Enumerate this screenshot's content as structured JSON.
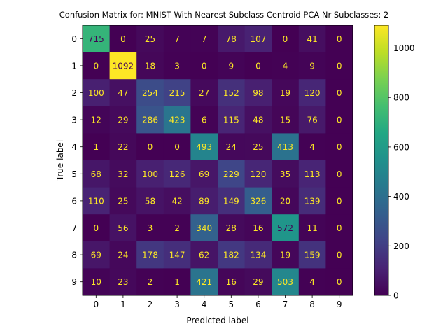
{
  "chart_data": {
    "type": "heatmap",
    "title": "Confusion Matrix for: MNIST With Nearest Subclass Centroid PCA Nr Subclasses: 2",
    "xlabel": "Predicted label",
    "ylabel": "True label",
    "x_categories": [
      "0",
      "1",
      "2",
      "3",
      "4",
      "5",
      "6",
      "7",
      "8",
      "9"
    ],
    "y_categories": [
      "0",
      "1",
      "2",
      "3",
      "4",
      "5",
      "6",
      "7",
      "8",
      "9"
    ],
    "values": [
      [
        715,
        0,
        25,
        7,
        7,
        78,
        107,
        0,
        41,
        0
      ],
      [
        0,
        1092,
        18,
        3,
        0,
        9,
        0,
        4,
        9,
        0
      ],
      [
        100,
        47,
        254,
        215,
        27,
        152,
        98,
        19,
        120,
        0
      ],
      [
        12,
        29,
        286,
        423,
        6,
        115,
        48,
        15,
        76,
        0
      ],
      [
        1,
        22,
        0,
        0,
        493,
        24,
        25,
        413,
        4,
        0
      ],
      [
        68,
        32,
        100,
        126,
        69,
        229,
        120,
        35,
        113,
        0
      ],
      [
        110,
        25,
        58,
        42,
        89,
        149,
        326,
        20,
        139,
        0
      ],
      [
        0,
        56,
        3,
        2,
        340,
        28,
        16,
        572,
        11,
        0
      ],
      [
        69,
        24,
        178,
        147,
        62,
        182,
        134,
        19,
        159,
        0
      ],
      [
        10,
        23,
        2,
        1,
        421,
        16,
        29,
        503,
        4,
        0
      ]
    ],
    "colormap": "viridis",
    "value_range": [
      0,
      1092
    ],
    "colorbar_ticks": [
      "0",
      "200",
      "400",
      "600",
      "800",
      "1000"
    ],
    "colorbar_tick_values": [
      0,
      200,
      400,
      600,
      800,
      1000
    ],
    "annotation_colors": {
      "on_dark": "#fde725",
      "on_light": "#440154"
    },
    "legend": "colorbar-right",
    "grid": false
  }
}
